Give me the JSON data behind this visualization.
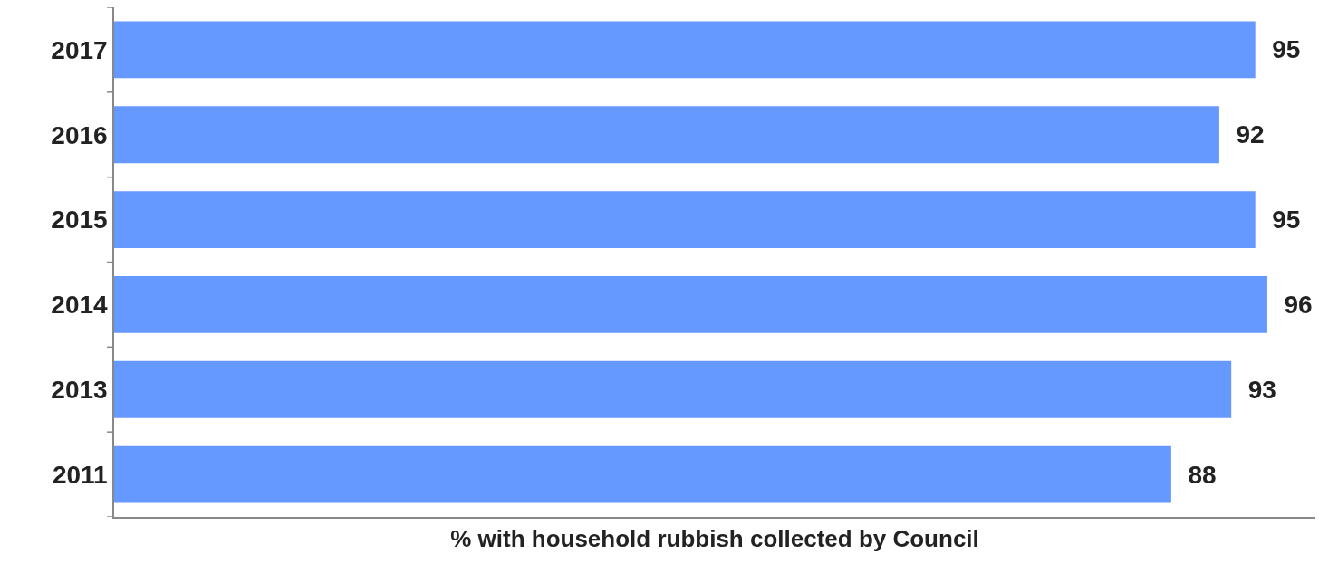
{
  "chart_data": {
    "type": "bar",
    "orientation": "horizontal",
    "xlabel": "% with household rubbish collected by Council",
    "categories": [
      "2017",
      "2016",
      "2015",
      "2014",
      "2013",
      "2011"
    ],
    "values": [
      95,
      92,
      95,
      96,
      93,
      88
    ],
    "color": "#6699ff",
    "data_labels": true,
    "xlim": [
      0,
      100
    ],
    "tick_labels": "y"
  }
}
